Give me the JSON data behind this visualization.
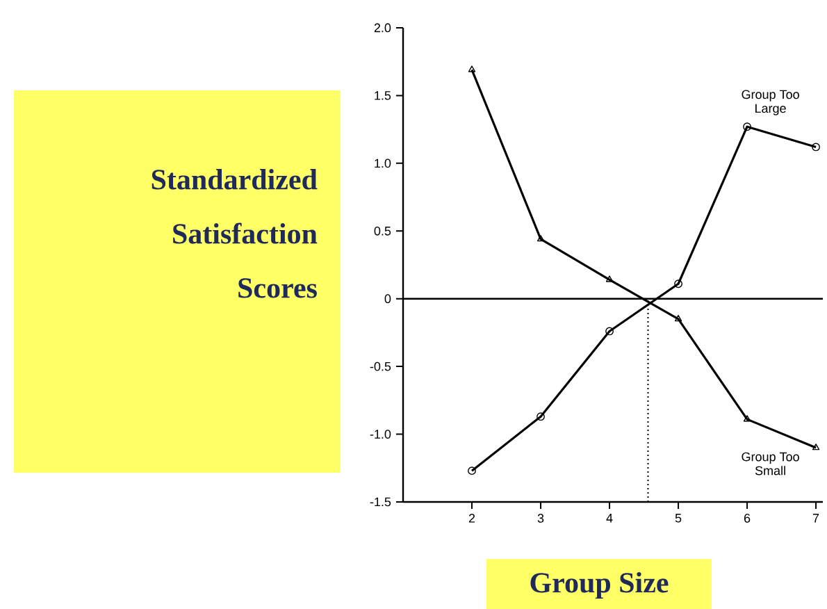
{
  "chart_data": {
    "type": "line",
    "xlabel": "Group Size",
    "ylabel": "Standardized Satisfaction Scores",
    "x": [
      2,
      3,
      4,
      5,
      6,
      7
    ],
    "series": [
      {
        "name": "Group Too Large",
        "color": "#000000",
        "marker": "circle",
        "values": [
          -1.27,
          -0.87,
          -0.24,
          0.11,
          1.27,
          1.12
        ]
      },
      {
        "name": "Group Too Small",
        "color": "#000000",
        "marker": "triangle",
        "values": [
          1.69,
          0.44,
          0.14,
          -0.15,
          -0.89,
          -1.1
        ]
      }
    ],
    "xlim": [
      1,
      7.1
    ],
    "ylim": [
      -1.5,
      2
    ],
    "xticks": [
      2,
      3,
      4,
      5,
      6,
      7
    ],
    "yticks": [
      {
        "value": -1.5,
        "label": "-1.5"
      },
      {
        "value": -1,
        "label": "-1.0"
      },
      {
        "value": -0.5,
        "label": "-0.5"
      },
      0,
      {
        "value": 0.5,
        "label": "0.5"
      },
      {
        "value": 1,
        "label": "1.0"
      },
      {
        "value": 1.5,
        "label": "1.5"
      },
      {
        "value": 2,
        "label": "2.0"
      }
    ],
    "ref_lines": [
      {
        "axis": "y",
        "value": 0,
        "line_style": "solid"
      },
      {
        "axis": "x",
        "value": 4.56,
        "line_style": "dotted"
      }
    ],
    "line_style": "solid"
  }
}
